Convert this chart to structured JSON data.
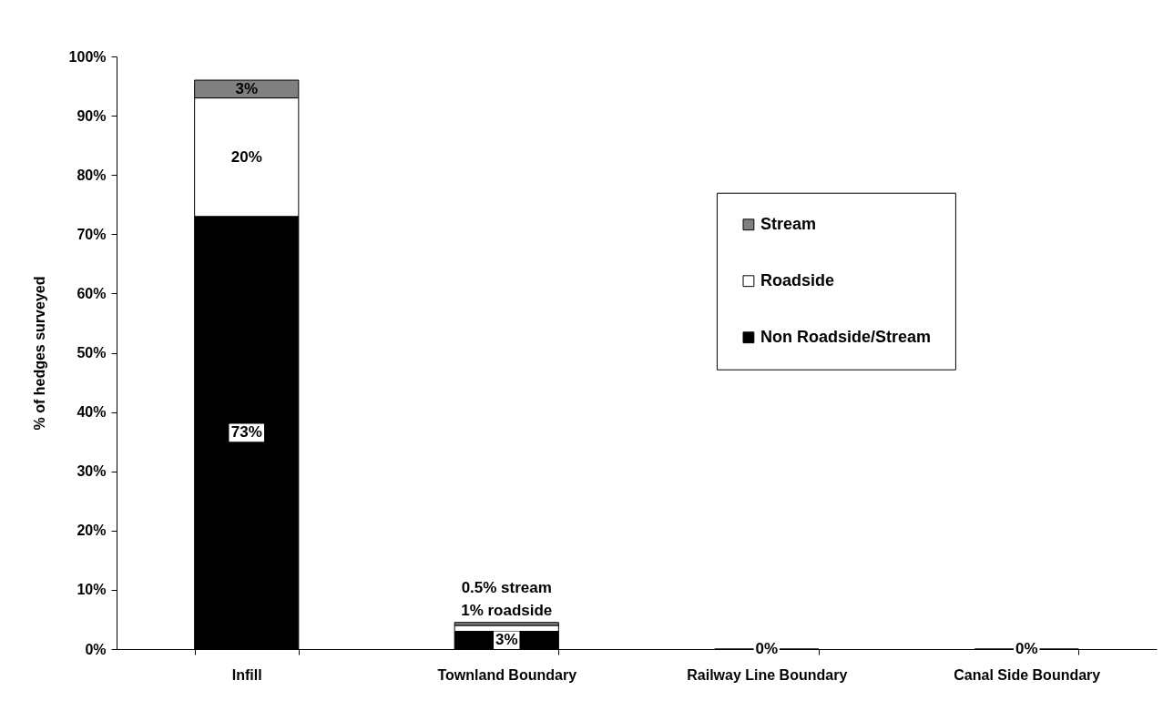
{
  "chart_data": {
    "type": "bar",
    "stacked": true,
    "ylabel": "% of hedges surveyed",
    "categories": [
      "Infill",
      "Townland Boundary",
      "Railway Line Boundary",
      "Canal Side Boundary"
    ],
    "series": [
      {
        "name": "Non Roadside/Stream",
        "color": "#000000",
        "values": [
          73,
          3,
          0,
          0
        ],
        "value_labels": [
          "73%",
          "3%",
          "0%",
          "0%"
        ]
      },
      {
        "name": "Roadside",
        "color": "#ffffff",
        "values": [
          20,
          1,
          null,
          null
        ],
        "value_labels": [
          "20%",
          "1% roadside",
          null,
          null
        ]
      },
      {
        "name": "Stream",
        "color": "#808080",
        "values": [
          3,
          0.5,
          null,
          null
        ],
        "value_labels": [
          "3%",
          "0.5% stream",
          null,
          null
        ]
      }
    ],
    "ylim": [
      0,
      100
    ],
    "yticks": [
      {
        "value": 0,
        "label": "0%"
      },
      {
        "value": 10,
        "label": "10%"
      },
      {
        "value": 20,
        "label": "20%"
      },
      {
        "value": 30,
        "label": "30%"
      },
      {
        "value": 40,
        "label": "40%"
      },
      {
        "value": 50,
        "label": "50%"
      },
      {
        "value": 60,
        "label": "60%"
      },
      {
        "value": 70,
        "label": "70%"
      },
      {
        "value": 80,
        "label": "80%"
      },
      {
        "value": 90,
        "label": "90%"
      },
      {
        "value": 100,
        "label": "100%"
      }
    ],
    "legend": "right"
  }
}
